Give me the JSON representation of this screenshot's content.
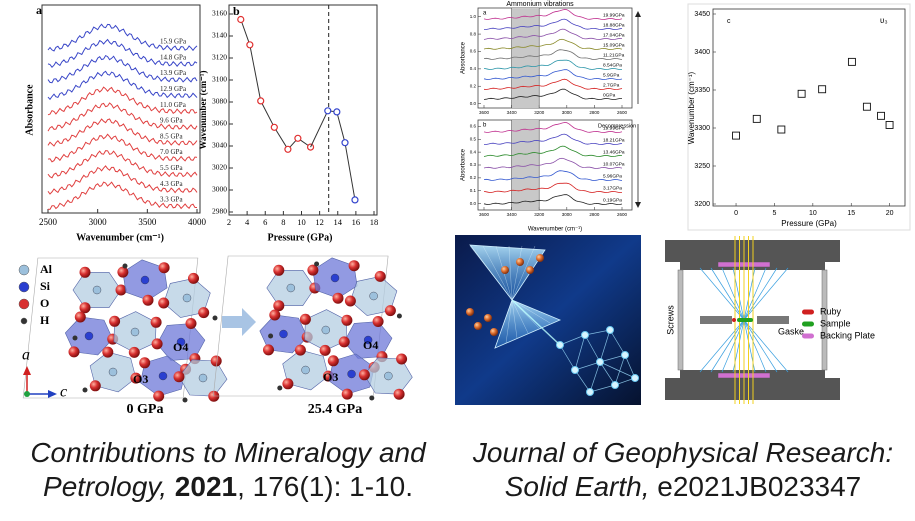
{
  "chart_data": [
    {
      "type": "spectra",
      "panel_label": "a",
      "xlabel": "Wavenumber (cm⁻¹)",
      "ylabel": "Absorbance",
      "xlim": [
        2500,
        4000
      ],
      "xticks": [
        2500,
        3000,
        3500,
        4000
      ],
      "series": [
        {
          "name": "15.9 GPa",
          "color": "#3a47c8"
        },
        {
          "name": "14.8 GPa",
          "color": "#3a47c8"
        },
        {
          "name": "13.9 GPa",
          "color": "#3a47c8"
        },
        {
          "name": "12.9 GPa",
          "color": "#3a47c8"
        },
        {
          "name": "11.0 GPa",
          "color": "#e04040"
        },
        {
          "name": "9.6 GPa",
          "color": "#e04040"
        },
        {
          "name": "8.5 GPa",
          "color": "#e04040"
        },
        {
          "name": "7.0 GPa",
          "color": "#e04040"
        },
        {
          "name": "5.5 GPa",
          "color": "#e04040"
        },
        {
          "name": "4.3 GPa",
          "color": "#e04040"
        },
        {
          "name": "3.3 GPa",
          "color": "#e04040"
        }
      ]
    },
    {
      "type": "line",
      "panel_label": "b",
      "xlabel": "Pressure (GPa)",
      "ylabel": "Wavenumber (cm⁻¹)",
      "xlim": [
        2,
        18
      ],
      "xticks": [
        2,
        4,
        6,
        8,
        10,
        12,
        14,
        16,
        18
      ],
      "ylim": [
        2980,
        3160
      ],
      "yticks": [
        2980,
        3000,
        3020,
        3040,
        3060,
        3080,
        3100,
        3120,
        3140,
        3160
      ],
      "vline": 13,
      "line_color": "#333333",
      "series": [
        {
          "color": "#e03030",
          "x": [
            3.3,
            4.3,
            5.5,
            7.0,
            8.5,
            9.6,
            11.0
          ],
          "values": [
            3155,
            3132,
            3081,
            3057,
            3037,
            3047,
            3039
          ]
        },
        {
          "color": "#3344cc",
          "x": [
            12.9,
            13.9,
            14.8,
            15.9
          ],
          "values": [
            3072,
            3071,
            3043,
            2991
          ]
        }
      ]
    },
    {
      "type": "spectra",
      "xlabel": "Wavenumber (cm⁻¹)",
      "ylabel": "Absorbance",
      "xlim": [
        3600,
        2600
      ],
      "xticks": [
        3600,
        3400,
        3200,
        3000,
        2800,
        2600
      ],
      "shaded_range": [
        3400,
        3200
      ],
      "panels": [
        {
          "letter": "a",
          "title": "Ammonium vibrations",
          "ylim": [
            -0.05,
            1.1
          ],
          "yticks": [
            {
              "value": 0,
              "label": "0.0"
            },
            0.2,
            0.4,
            0.6,
            0.8,
            {
              "value": 1,
              "label": "1.0"
            }
          ],
          "series": [
            {
              "name": "19.99GPa",
              "color": "#c0308f"
            },
            {
              "name": "18.88GPa",
              "color": "#4a44c0"
            },
            {
              "name": "17.04GPa",
              "color": "#8a50a8"
            },
            {
              "name": "15.09GPa",
              "color": "#8a8a2a"
            },
            {
              "name": "11.21GPa",
              "color": "#707070"
            },
            {
              "name": "8.54GPa",
              "color": "#2a95a8"
            },
            {
              "name": "5.9GPa",
              "color": "#3358d0"
            },
            {
              "name": "2.7GPa",
              "color": "#d52020"
            },
            {
              "name": "0GPa",
              "color": "#222222"
            }
          ]
        },
        {
          "letter": "b",
          "title": "Decompression",
          "ylim": [
            -0.05,
            0.65
          ],
          "yticks": [
            {
              "value": 0,
              "label": "0.0"
            },
            0.1,
            0.2,
            0.3,
            0.4,
            0.5,
            0.6
          ],
          "series": [
            {
              "name": "19.99GPa",
              "color": "#c0308f"
            },
            {
              "name": "18.21GPa",
              "color": "#4a44c0"
            },
            {
              "name": "13.46GPa",
              "color": "#2a8a2a"
            },
            {
              "name": "10.07GPa",
              "color": "#8a50a8"
            },
            {
              "name": "5.96GPa",
              "color": "#3358d0"
            },
            {
              "name": "3.17GPa",
              "color": "#d52020"
            },
            {
              "name": "0.19GPa",
              "color": "#222222"
            }
          ]
        }
      ]
    },
    {
      "type": "scatter",
      "panel_label": "c",
      "annotation": "υ₃",
      "xlabel": "Pressure (GPa)",
      "ylabel": "Wavenumber (cm⁻¹)",
      "xlim": [
        -3,
        22
      ],
      "xticks": [
        0,
        5,
        10,
        15,
        20
      ],
      "ylim": [
        3200,
        3450
      ],
      "yticks": [
        3200,
        3250,
        3300,
        3350,
        3400,
        3450
      ],
      "color": "#111111",
      "x": [
        0,
        2.7,
        5.9,
        8.54,
        11.21,
        15.09,
        17.04,
        18.88,
        19.99
      ],
      "values": [
        3290,
        3312,
        3298,
        3345,
        3351,
        3387,
        3328,
        3316,
        3304
      ]
    }
  ],
  "structure": {
    "legend": [
      {
        "label": "Al",
        "color": "#9cc0dc"
      },
      {
        "label": "Si",
        "color": "#2a3fd0"
      },
      {
        "label": "O",
        "color": "#d83030"
      },
      {
        "label": "H",
        "color": "#333333"
      }
    ],
    "axes": [
      "a",
      "c"
    ],
    "panels": [
      {
        "caption": "0 GPa",
        "sites": [
          "O4",
          "O3"
        ]
      },
      {
        "caption": "25.4 GPa",
        "sites": [
          "O4",
          "O3"
        ]
      }
    ]
  },
  "schematic": {
    "side_label": "Screws",
    "gasket_label": "Gaske",
    "legend": [
      {
        "label": "Ruby",
        "color": "#d02020"
      },
      {
        "label": "Sample",
        "color": "#20a020"
      },
      {
        "label": "Backing Plate",
        "color": "#d070d0"
      }
    ]
  },
  "citations": [
    {
      "journal": "Contributions to Mineralogy and Petrology,",
      "year": "2021",
      "ref": ", 176(1): 1-10."
    },
    {
      "journal": "Journal of Geophysical Research: Solid Earth,",
      "ref": " e2021JB023347"
    }
  ]
}
